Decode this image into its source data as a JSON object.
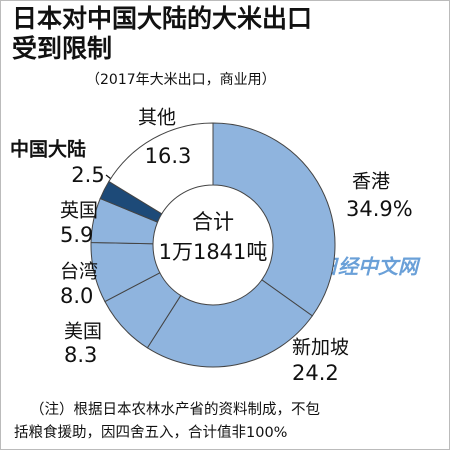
{
  "chart_data": {
    "type": "pie",
    "title": [
      "日本对中国大陆的大米出口",
      "受到限制"
    ],
    "subtitle": "（2017年大米出口，商业用）",
    "categories": [
      "香港",
      "新加坡",
      "美国",
      "台湾",
      "英国",
      "中国大陆",
      "其他"
    ],
    "values": [
      34.9,
      24.2,
      8.3,
      8.0,
      5.9,
      2.5,
      16.3
    ],
    "value_labels": [
      "34.9%",
      "24.2",
      "8.3",
      "8.0",
      "5.9",
      "2.5",
      "16.3"
    ],
    "colors": [
      "#8fb4de",
      "#8fb4de",
      "#8fb4de",
      "#8fb4de",
      "#8fb4de",
      "#1d4a78",
      "#ffffff"
    ],
    "center_label": [
      "合计",
      "1万1841吨"
    ],
    "note": [
      "（注）根据日本农林水产省的资料制成，不包",
      "括粮食援助，因四舍五入，合计值非100%"
    ],
    "watermark": "日经中文网"
  }
}
